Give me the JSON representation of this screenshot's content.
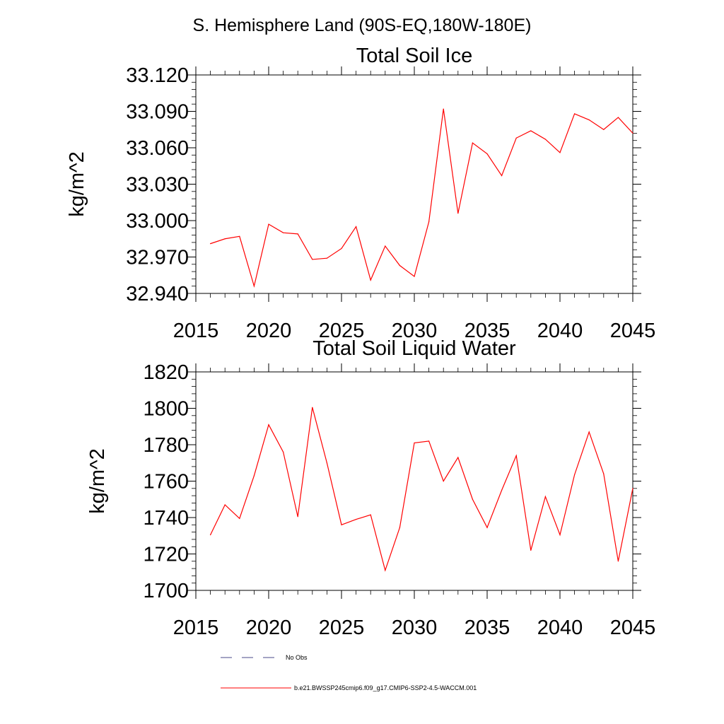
{
  "figure": {
    "suptitle": "S. Hemisphere Land (90S-EQ,180W-180E)"
  },
  "chart_data": [
    {
      "type": "line",
      "title": "Total Soil Ice",
      "xlabel": "",
      "ylabel": "kg/m^2",
      "xlim": [
        2015,
        2045
      ],
      "ylim": [
        32.94,
        33.12
      ],
      "x_ticks": [
        "2015",
        "2020",
        "2025",
        "2030",
        "2035",
        "2040",
        "2045"
      ],
      "y_ticks": [
        "32.940",
        "32.970",
        "33.000",
        "33.030",
        "33.060",
        "33.090",
        "33.120"
      ],
      "grid": false,
      "series": [
        {
          "name": "b.e21.BWSSP245cmip6.f09_g17.CMIP6-SSP2-4.5-WACCM.001",
          "color": "#ff0000",
          "x": [
            2016,
            2017,
            2018,
            2019,
            2020,
            2021,
            2022,
            2023,
            2024,
            2025,
            2026,
            2027,
            2028,
            2029,
            2030,
            2031,
            2032,
            2033,
            2034,
            2035,
            2036,
            2037,
            2038,
            2039,
            2040,
            2041,
            2042,
            2043,
            2044,
            2045
          ],
          "y": [
            32.981,
            32.985,
            32.987,
            32.946,
            32.997,
            32.99,
            32.989,
            32.968,
            32.969,
            32.977,
            32.995,
            32.951,
            32.979,
            32.963,
            32.954,
            32.999,
            33.092,
            33.006,
            33.064,
            33.055,
            33.037,
            33.068,
            33.074,
            33.067,
            33.056,
            33.088,
            33.083,
            33.075,
            33.085,
            33.072
          ]
        }
      ]
    },
    {
      "type": "line",
      "title": "Total Soil Liquid Water",
      "xlabel": "",
      "ylabel": "kg/m^2",
      "xlim": [
        2015,
        2045
      ],
      "ylim": [
        1700,
        1820
      ],
      "x_ticks": [
        "2015",
        "2020",
        "2025",
        "2030",
        "2035",
        "2040",
        "2045"
      ],
      "y_ticks": [
        "1700",
        "1720",
        "1740",
        "1760",
        "1780",
        "1800",
        "1820"
      ],
      "grid": false,
      "series": [
        {
          "name": "b.e21.BWSSP245cmip6.f09_g17.CMIP6-SSP2-4.5-WACCM.001",
          "color": "#ff0000",
          "x": [
            2016,
            2017,
            2018,
            2019,
            2020,
            2021,
            2022,
            2023,
            2024,
            2025,
            2026,
            2027,
            2028,
            2029,
            2030,
            2031,
            2032,
            2033,
            2034,
            2035,
            2036,
            2037,
            2038,
            2039,
            2040,
            2041,
            2042,
            2043,
            2044,
            2045
          ],
          "y": [
            1730.5,
            1747,
            1739.5,
            1763,
            1791,
            1776,
            1740.5,
            1800.5,
            1770,
            1736,
            1739,
            1741.5,
            1711,
            1734.5,
            1781,
            1782,
            1760,
            1773,
            1750,
            1734.5,
            1755,
            1774,
            1722,
            1751.5,
            1730.5,
            1763.5,
            1787,
            1764,
            1716,
            1756
          ]
        }
      ]
    }
  ],
  "legend": {
    "placement": "bottom",
    "entries": [
      {
        "label": "No Obs",
        "style": "dashed",
        "color": "#4a4a8a"
      },
      {
        "label": "b.e21.BWSSP245cmip6.f09_g17.CMIP6-SSP2-4.5-WACCM.001",
        "style": "solid",
        "color": "#ff0000"
      }
    ]
  }
}
